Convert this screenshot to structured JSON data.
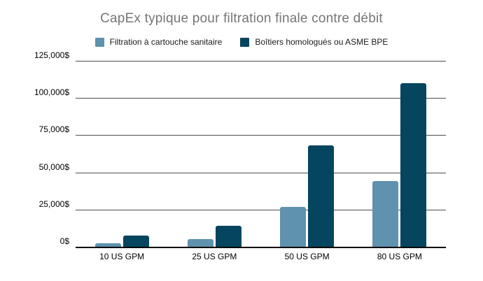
{
  "chart_data": {
    "type": "bar",
    "title": "CapEx typique pour filtration finale contre débit",
    "categories": [
      "10 US GPM",
      "25 US GPM",
      "50 US GPM",
      "80 US GPM"
    ],
    "series": [
      {
        "name": "Filtration à cartouche sanitaire",
        "color": "#5e92ae",
        "values": [
          2500,
          5000,
          27000,
          44000
        ]
      },
      {
        "name": "Boîtiers homologués ou ASME BPE",
        "color": "#05455f",
        "values": [
          7500,
          14000,
          68000,
          110000
        ]
      }
    ],
    "xlabel": "",
    "ylabel": "",
    "ylim": [
      0,
      125000
    ],
    "y_tick_step": 25000,
    "y_tick_labels": [
      "0$",
      "25,000$",
      "50,000$",
      "75,000$",
      "100,000$",
      "125,000$"
    ],
    "grid": "on",
    "legend_position": "top",
    "colors": {
      "title_text": "#757575",
      "axis_line": "#000000",
      "gridline": "#4d4d4d",
      "tick_text": "#000000",
      "background": "#ffffff"
    }
  }
}
